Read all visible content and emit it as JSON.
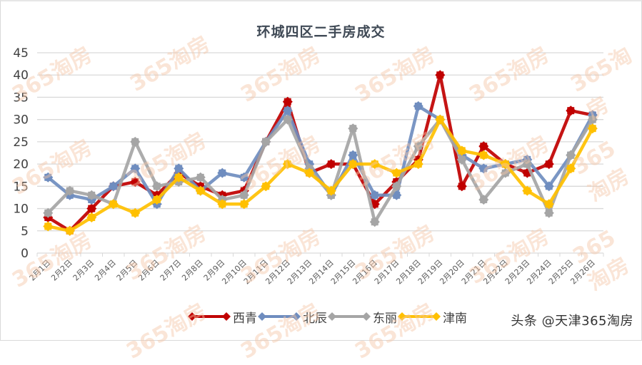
{
  "title": "环城四区二手房成交",
  "footer_watermark": "头条 @天津365淘房",
  "watermark_text": "365淘房",
  "chart_data": {
    "type": "line",
    "title": "环城四区二手房成交",
    "xlabel": "",
    "ylabel": "",
    "ylim": [
      0,
      45
    ],
    "yticks": [
      0,
      5,
      10,
      15,
      20,
      25,
      30,
      35,
      40,
      45
    ],
    "grid": true,
    "legend_position": "bottom",
    "categories": [
      "2月1日",
      "2月2日",
      "2月3日",
      "2月4日",
      "2月5日",
      "2月6日",
      "2月7日",
      "2月8日",
      "2月9日",
      "2月10日",
      "2月11日",
      "2月12日",
      "2月13日",
      "2月14日",
      "2月15日",
      "2月16日",
      "2月17日",
      "2月18日",
      "2月19日",
      "2月20日",
      "2月21日",
      "2月22日",
      "2月23日",
      "2月24日",
      "2月25日",
      "2月26日"
    ],
    "series": [
      {
        "name": "西青",
        "color": "#c00000",
        "values": [
          8,
          5,
          10,
          15,
          16,
          13,
          18,
          15,
          13,
          14,
          25,
          34,
          18,
          20,
          20,
          11,
          16,
          21,
          40,
          15,
          24,
          20,
          18,
          20,
          32,
          31
        ]
      },
      {
        "name": "北辰",
        "color": "#6f8dbf",
        "values": [
          17,
          13,
          12,
          15,
          19,
          11,
          19,
          14,
          18,
          17,
          25,
          32,
          20,
          13,
          22,
          13,
          13,
          33,
          30,
          22,
          19,
          20,
          21,
          15,
          22,
          31
        ]
      },
      {
        "name": "东丽",
        "color": "#a5a5a5",
        "values": [
          9,
          14,
          13,
          11,
          25,
          15,
          16,
          17,
          12,
          13,
          25,
          30,
          19,
          13,
          28,
          7,
          15,
          24,
          30,
          21,
          12,
          18,
          20,
          9,
          22,
          30
        ]
      },
      {
        "name": "津南",
        "color": "#ffc000",
        "values": [
          6,
          5,
          8,
          11,
          9,
          12,
          17,
          14,
          11,
          11,
          15,
          20,
          18,
          14,
          20,
          20,
          18,
          20,
          30,
          23,
          22,
          20,
          14,
          11,
          19,
          28
        ]
      }
    ]
  }
}
